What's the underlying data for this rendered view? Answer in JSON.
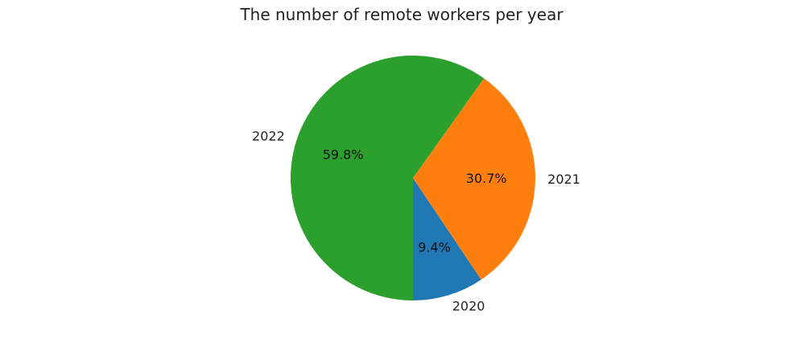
{
  "chart_data": {
    "type": "pie",
    "title": "The number of remote workers per year",
    "labels": [
      "2020",
      "2021",
      "2022"
    ],
    "values": [
      9.4,
      30.7,
      59.8
    ],
    "autopct_labels": [
      "9.4%",
      "30.7%",
      "59.8%"
    ],
    "colors": [
      "#1f77b4",
      "#ff7f0e",
      "#2ca02c"
    ],
    "start_angle": -90,
    "direction": "counterclockwise",
    "legend": false
  }
}
